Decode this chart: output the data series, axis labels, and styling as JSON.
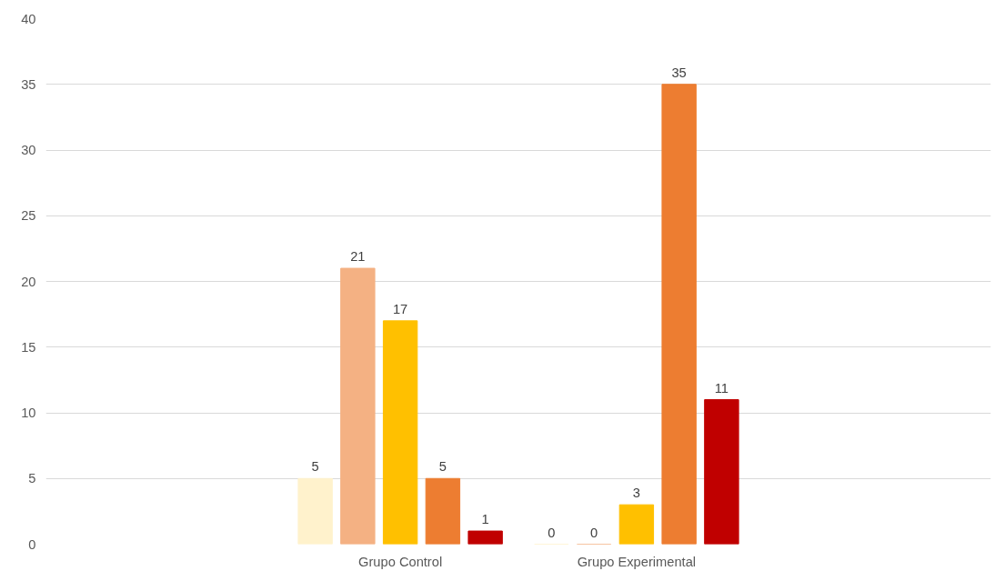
{
  "chart_data": {
    "type": "bar",
    "categories": [
      null,
      "Grupo Control",
      "Grupo Experimental",
      null
    ],
    "series": [
      {
        "color": "#fff2cc",
        "values": [
          null,
          5,
          0,
          null
        ]
      },
      {
        "color": "#f4b183",
        "values": [
          null,
          21,
          0,
          null
        ]
      },
      {
        "color": "#ffc000",
        "values": [
          null,
          17,
          3,
          null
        ]
      },
      {
        "color": "#ed7d31",
        "values": [
          null,
          5,
          35,
          null
        ]
      },
      {
        "color": "#c00000",
        "values": [
          null,
          1,
          11,
          null
        ]
      }
    ],
    "ylim": [
      0,
      40
    ],
    "yticks": [
      0,
      5,
      10,
      15,
      20,
      25,
      30,
      35,
      40
    ],
    "grid": "y",
    "data_labels": true
  }
}
